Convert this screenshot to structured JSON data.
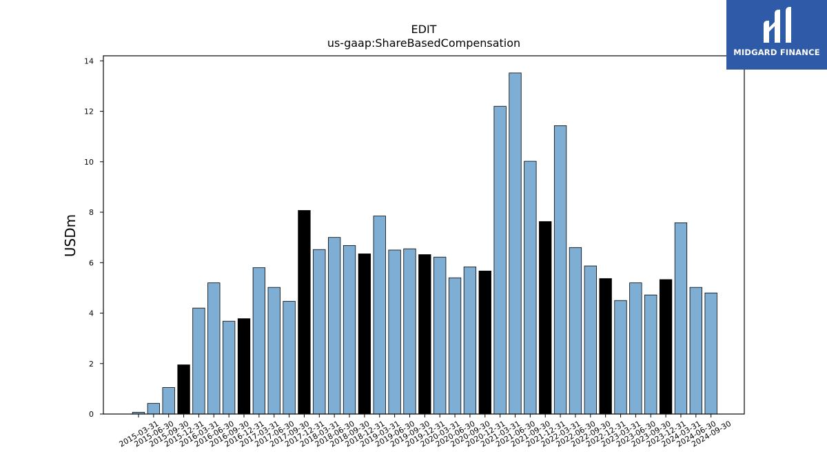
{
  "brand": {
    "name": "MIDGARD FINANCE",
    "background": "#2e5aa8"
  },
  "chart_data": {
    "type": "bar",
    "title": "EDIT",
    "subtitle": "us-gaap:ShareBasedCompensation",
    "xlabel": "",
    "ylabel": "USDm",
    "ylim": [
      0,
      14.2
    ],
    "yticks": [
      0,
      2,
      4,
      6,
      8,
      10,
      12,
      14
    ],
    "grid": false,
    "colors": {
      "quarter": "#7eaed3",
      "fiscal_year_end": "#000000",
      "edge": "#000000"
    },
    "categories": [
      "2015-03-31",
      "2015-06-30",
      "2015-09-30",
      "2015-12-31",
      "2016-03-31",
      "2016-06-30",
      "2016-09-30",
      "2016-12-31",
      "2017-03-31",
      "2017-06-30",
      "2017-09-30",
      "2017-12-31",
      "2018-03-31",
      "2018-06-30",
      "2018-09-30",
      "2018-12-31",
      "2019-03-31",
      "2019-06-30",
      "2019-09-30",
      "2019-12-31",
      "2020-03-31",
      "2020-06-30",
      "2020-09-30",
      "2020-12-31",
      "2021-03-31",
      "2021-06-30",
      "2021-09-30",
      "2021-12-31",
      "2022-03-31",
      "2022-06-30",
      "2022-09-30",
      "2022-12-31",
      "2023-03-31",
      "2023-06-30",
      "2023-09-30",
      "2023-12-31",
      "2024-03-31",
      "2024-06-30",
      "2024-09-30"
    ],
    "values": [
      0.07,
      0.42,
      1.05,
      1.95,
      4.2,
      5.2,
      3.68,
      3.78,
      5.8,
      5.02,
      4.47,
      8.07,
      6.52,
      7.0,
      6.68,
      6.35,
      7.85,
      6.5,
      6.55,
      6.32,
      6.22,
      5.4,
      5.83,
      5.67,
      12.2,
      13.52,
      10.02,
      7.63,
      11.43,
      6.6,
      5.87,
      5.37,
      4.5,
      5.2,
      4.72,
      5.33,
      7.58,
      5.02,
      4.8
    ],
    "highlight": [
      false,
      false,
      false,
      true,
      false,
      false,
      false,
      true,
      false,
      false,
      false,
      true,
      false,
      false,
      false,
      true,
      false,
      false,
      false,
      true,
      false,
      false,
      false,
      true,
      false,
      false,
      false,
      true,
      false,
      false,
      false,
      true,
      false,
      false,
      false,
      true,
      false,
      false,
      false
    ]
  }
}
